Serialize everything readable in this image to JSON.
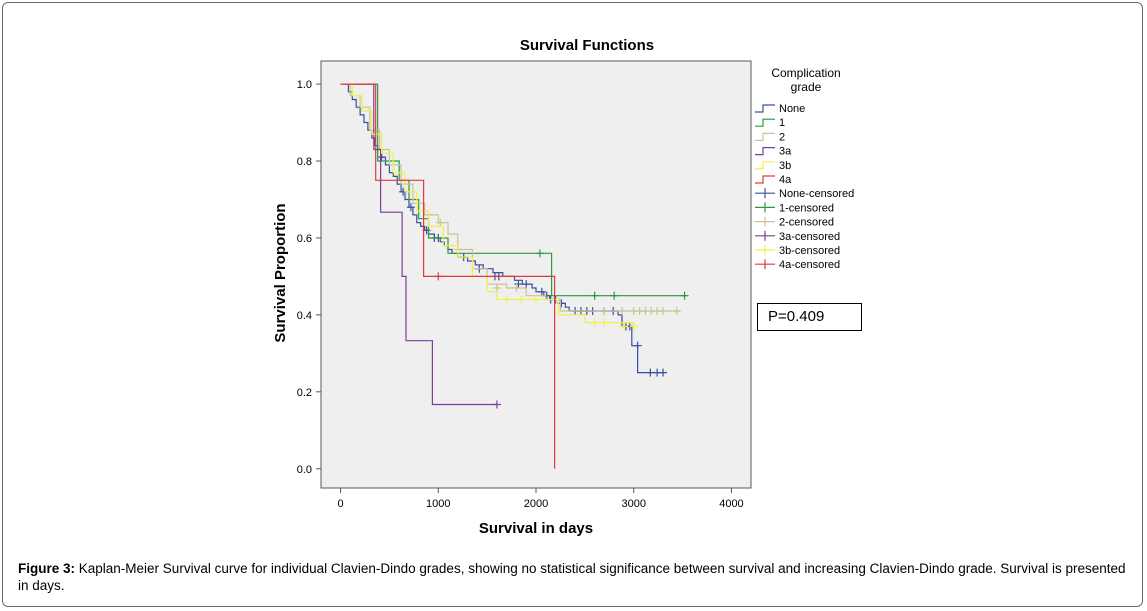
{
  "caption": {
    "label": "Figure 3:",
    "text": " Kaplan-Meier Survival curve for individual Clavien-Dindo grades, showing no statistical significance between survival and increasing Clavien-Dindo grade. Survival is presented in days."
  },
  "pvalue": "P=0.409",
  "chart_data": {
    "type": "line",
    "subtype": "kaplan-meier step",
    "title": "Survival Functions",
    "xlabel": "Survival in days",
    "ylabel": "Survival Proportion",
    "xlim": [
      -200,
      4200
    ],
    "ylim": [
      -0.05,
      1.06
    ],
    "xticks": [
      0,
      1000,
      2000,
      3000,
      4000
    ],
    "yticks": [
      0.0,
      0.2,
      0.4,
      0.6,
      0.8,
      1.0
    ],
    "ytick_labels": [
      "0.0",
      "0.2",
      "0.4",
      "0.6",
      "0.8",
      "1.0"
    ],
    "legend": {
      "title_lines": [
        "Complication",
        "grade"
      ],
      "placement": "right",
      "entries": [
        "None",
        "1",
        "2",
        "3a",
        "3b",
        "4a",
        "None-censored",
        "1-censored",
        "2-censored",
        "3a-censored",
        "3b-censored",
        "4a-censored"
      ]
    },
    "background": "#efefef",
    "series": [
      {
        "name": "None",
        "color": "#3b4fa0",
        "steps": [
          [
            0,
            1.0
          ],
          [
            80,
            0.98
          ],
          [
            120,
            0.96
          ],
          [
            160,
            0.94
          ],
          [
            200,
            0.92
          ],
          [
            240,
            0.9
          ],
          [
            280,
            0.88
          ],
          [
            320,
            0.86
          ],
          [
            350,
            0.84
          ],
          [
            380,
            0.83
          ],
          [
            420,
            0.81
          ],
          [
            460,
            0.79
          ],
          [
            500,
            0.77
          ],
          [
            540,
            0.76
          ],
          [
            580,
            0.74
          ],
          [
            620,
            0.72
          ],
          [
            660,
            0.7
          ],
          [
            700,
            0.68
          ],
          [
            740,
            0.66
          ],
          [
            780,
            0.64
          ],
          [
            820,
            0.63
          ],
          [
            860,
            0.62
          ],
          [
            900,
            0.61
          ],
          [
            960,
            0.6
          ],
          [
            1020,
            0.59
          ],
          [
            1060,
            0.58
          ],
          [
            1100,
            0.57
          ],
          [
            1140,
            0.56
          ],
          [
            1200,
            0.55
          ],
          [
            1300,
            0.54
          ],
          [
            1380,
            0.53
          ],
          [
            1460,
            0.52
          ],
          [
            1560,
            0.51
          ],
          [
            1660,
            0.5
          ],
          [
            1780,
            0.49
          ],
          [
            1860,
            0.48
          ],
          [
            1960,
            0.47
          ],
          [
            2000,
            0.46
          ],
          [
            2080,
            0.45
          ],
          [
            2140,
            0.44
          ],
          [
            2250,
            0.43
          ],
          [
            2300,
            0.42
          ],
          [
            2340,
            0.41
          ],
          [
            2840,
            0.4
          ],
          [
            2880,
            0.37
          ],
          [
            2980,
            0.32
          ],
          [
            3040,
            0.25
          ],
          [
            3320,
            0.25
          ]
        ],
        "censored": [
          [
            420,
            0.81
          ],
          [
            640,
            0.72
          ],
          [
            720,
            0.68
          ],
          [
            880,
            0.62
          ],
          [
            960,
            0.6
          ],
          [
            1000,
            0.6
          ],
          [
            1260,
            0.55
          ],
          [
            1420,
            0.52
          ],
          [
            1580,
            0.5
          ],
          [
            1620,
            0.5
          ],
          [
            1820,
            0.48
          ],
          [
            1900,
            0.48
          ],
          [
            2060,
            0.46
          ],
          [
            2110,
            0.45
          ],
          [
            2150,
            0.44
          ],
          [
            2200,
            0.44
          ],
          [
            2260,
            0.43
          ],
          [
            2400,
            0.41
          ],
          [
            2460,
            0.41
          ],
          [
            2520,
            0.41
          ],
          [
            2580,
            0.41
          ],
          [
            2700,
            0.41
          ],
          [
            2790,
            0.41
          ],
          [
            2920,
            0.37
          ],
          [
            2960,
            0.37
          ],
          [
            3040,
            0.32
          ],
          [
            3170,
            0.25
          ],
          [
            3240,
            0.25
          ],
          [
            3300,
            0.25
          ]
        ]
      },
      {
        "name": "1",
        "color": "#2c9a3b",
        "steps": [
          [
            0,
            1.0
          ],
          [
            370,
            1.0
          ],
          [
            380,
            0.8
          ],
          [
            600,
            0.75
          ],
          [
            700,
            0.7
          ],
          [
            800,
            0.65
          ],
          [
            900,
            0.6
          ],
          [
            1100,
            0.56
          ],
          [
            2150,
            0.56
          ],
          [
            2160,
            0.45
          ],
          [
            3540,
            0.45
          ]
        ],
        "censored": [
          [
            2040,
            0.56
          ],
          [
            2600,
            0.45
          ],
          [
            2800,
            0.45
          ],
          [
            3520,
            0.45
          ]
        ]
      },
      {
        "name": "2",
        "color": "#c8c591",
        "steps": [
          [
            0,
            1.0
          ],
          [
            100,
            0.97
          ],
          [
            200,
            0.94
          ],
          [
            300,
            0.88
          ],
          [
            400,
            0.83
          ],
          [
            500,
            0.79
          ],
          [
            620,
            0.74
          ],
          [
            740,
            0.69
          ],
          [
            860,
            0.66
          ],
          [
            1000,
            0.64
          ],
          [
            1100,
            0.61
          ],
          [
            1200,
            0.57
          ],
          [
            1350,
            0.52
          ],
          [
            1500,
            0.48
          ],
          [
            1700,
            0.47
          ],
          [
            1900,
            0.45
          ],
          [
            2100,
            0.44
          ],
          [
            2250,
            0.41
          ],
          [
            3480,
            0.41
          ]
        ],
        "censored": [
          [
            900,
            0.66
          ],
          [
            1020,
            0.64
          ],
          [
            1200,
            0.57
          ],
          [
            1600,
            0.47
          ],
          [
            1800,
            0.47
          ],
          [
            2700,
            0.41
          ],
          [
            2880,
            0.41
          ],
          [
            3000,
            0.41
          ],
          [
            3060,
            0.41
          ],
          [
            3120,
            0.41
          ],
          [
            3180,
            0.41
          ],
          [
            3240,
            0.41
          ],
          [
            3300,
            0.41
          ],
          [
            3440,
            0.41
          ]
        ]
      },
      {
        "name": "3a",
        "color": "#7a3f9a",
        "steps": [
          [
            0,
            1.0
          ],
          [
            330,
            1.0
          ],
          [
            340,
            0.83
          ],
          [
            400,
            0.83
          ],
          [
            410,
            0.667
          ],
          [
            620,
            0.667
          ],
          [
            630,
            0.5
          ],
          [
            660,
            0.5
          ],
          [
            670,
            0.333
          ],
          [
            930,
            0.333
          ],
          [
            940,
            0.167
          ],
          [
            1600,
            0.167
          ]
        ],
        "censored": [
          [
            1600,
            0.167
          ]
        ]
      },
      {
        "name": "3b",
        "color": "#f3f046",
        "steps": [
          [
            0,
            1.0
          ],
          [
            120,
            0.97
          ],
          [
            220,
            0.93
          ],
          [
            320,
            0.87
          ],
          [
            420,
            0.82
          ],
          [
            540,
            0.77
          ],
          [
            660,
            0.72
          ],
          [
            780,
            0.67
          ],
          [
            900,
            0.63
          ],
          [
            1050,
            0.58
          ],
          [
            1200,
            0.55
          ],
          [
            1350,
            0.5
          ],
          [
            1500,
            0.46
          ],
          [
            1600,
            0.44
          ],
          [
            2200,
            0.44
          ],
          [
            2230,
            0.4
          ],
          [
            2500,
            0.38
          ],
          [
            2800,
            0.38
          ],
          [
            3000,
            0.37
          ]
        ],
        "censored": [
          [
            1700,
            0.44
          ],
          [
            1850,
            0.44
          ],
          [
            2000,
            0.44
          ],
          [
            2600,
            0.38
          ],
          [
            2700,
            0.38
          ],
          [
            2900,
            0.37
          ],
          [
            3000,
            0.37
          ]
        ]
      },
      {
        "name": "4a",
        "color": "#e03a3a",
        "steps": [
          [
            0,
            1.0
          ],
          [
            350,
            1.0
          ],
          [
            360,
            0.75
          ],
          [
            840,
            0.75
          ],
          [
            850,
            0.5
          ],
          [
            2180,
            0.5
          ],
          [
            2190,
            0.0
          ]
        ],
        "censored": [
          [
            1000,
            0.5
          ]
        ]
      }
    ]
  }
}
